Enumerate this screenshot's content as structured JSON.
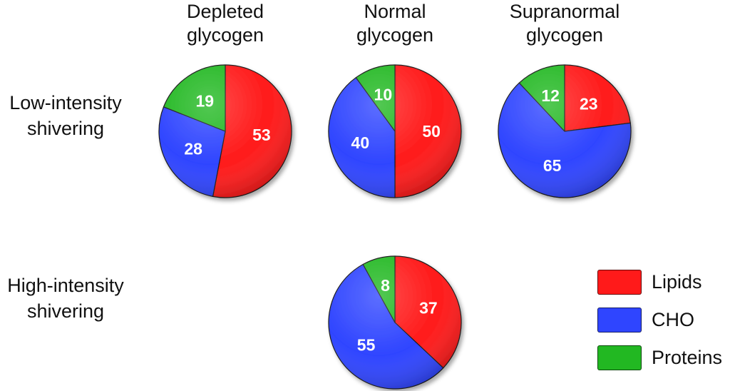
{
  "colors": {
    "lipids": "#ff1a1a",
    "cho": "#2f45ff",
    "proteins": "#22b822"
  },
  "chart_data": {
    "type": "pie",
    "series_names": [
      "Lipids",
      "CHO",
      "Proteins"
    ],
    "columns": [
      {
        "id": "depleted",
        "label_lines": [
          "Depleted",
          "glycogen"
        ]
      },
      {
        "id": "normal",
        "label_lines": [
          "Normal",
          "glycogen"
        ]
      },
      {
        "id": "supranormal",
        "label_lines": [
          "Supranormal",
          "glycogen"
        ]
      }
    ],
    "rows": [
      {
        "id": "low",
        "label_lines": [
          "Low-intensity",
          "shivering"
        ]
      },
      {
        "id": "high",
        "label_lines": [
          "High-intensity",
          "shivering"
        ]
      }
    ],
    "pies": [
      {
        "id": "low-depleted",
        "row": "low",
        "column": "depleted",
        "values": {
          "Lipids": 53,
          "CHO": 28,
          "Proteins": 19
        }
      },
      {
        "id": "low-normal",
        "row": "low",
        "column": "normal",
        "values": {
          "Lipids": 50,
          "CHO": 40,
          "Proteins": 10
        }
      },
      {
        "id": "low-supranormal",
        "row": "low",
        "column": "supranormal",
        "values": {
          "Lipids": 23,
          "CHO": 65,
          "Proteins": 12
        }
      },
      {
        "id": "high-normal",
        "row": "high",
        "column": "normal",
        "values": {
          "Lipids": 37,
          "CHO": 55,
          "Proteins": 8
        }
      }
    ],
    "legend": {
      "position": "bottom-right",
      "items": [
        {
          "label": "Lipids",
          "color": "#ff1a1a"
        },
        {
          "label": "CHO",
          "color": "#2f45ff"
        },
        {
          "label": "Proteins",
          "color": "#22b822"
        }
      ]
    }
  }
}
